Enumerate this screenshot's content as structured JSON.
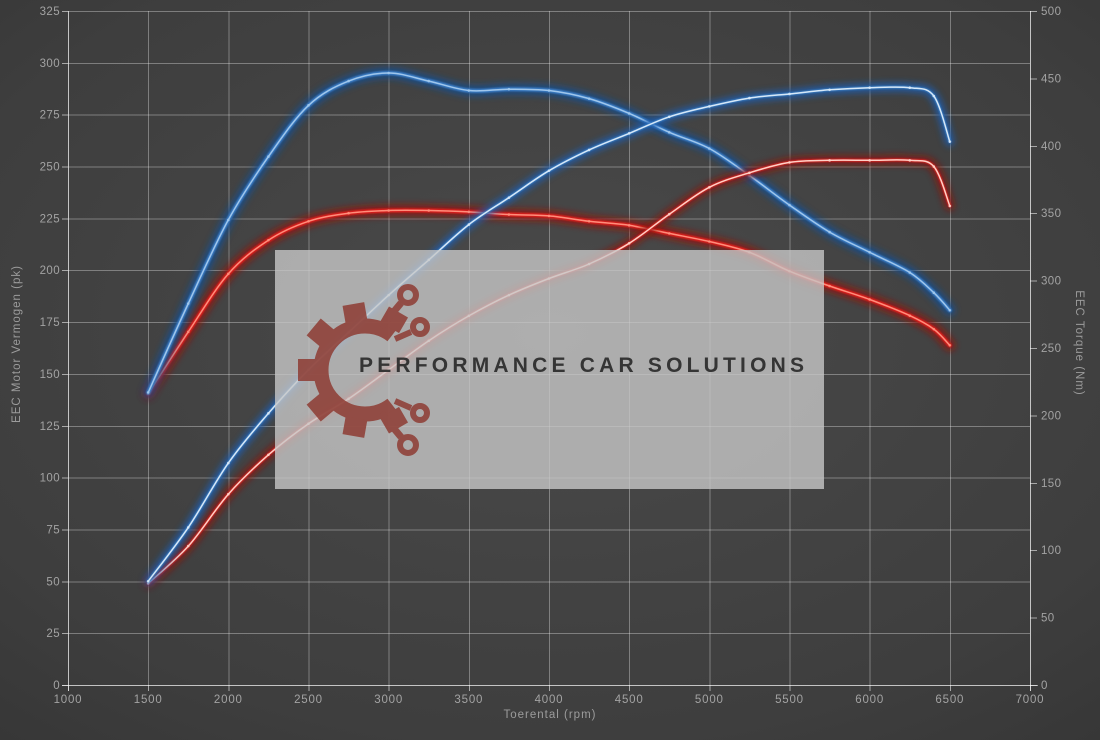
{
  "chart_data": {
    "type": "line",
    "title": "",
    "xlabel": "Toerental (rpm)",
    "ylabel_left": "EEC Motor Vermogen (pk)",
    "ylabel_right": "EEC Torque (Nm)",
    "x_range": [
      1000,
      7000
    ],
    "x_ticks": [
      1000,
      1500,
      2000,
      2500,
      3000,
      3500,
      4000,
      4500,
      5000,
      5500,
      6000,
      6500,
      7000
    ],
    "left_range": [
      0,
      325
    ],
    "left_ticks": [
      0,
      25,
      50,
      75,
      100,
      125,
      150,
      175,
      200,
      225,
      250,
      275,
      300,
      325
    ],
    "right_range": [
      0,
      500
    ],
    "right_ticks": [
      0,
      50,
      100,
      150,
      200,
      250,
      300,
      350,
      400,
      450,
      500
    ],
    "grid": {
      "on": true,
      "horizontal_step_pk": 25,
      "vertical_step_rpm": 500
    },
    "legend": "none",
    "series": [
      {
        "name": "torque-red",
        "axis": "right",
        "unit": "Nm",
        "stroke": "#e01f1f",
        "core": "#ff8d7a",
        "glow": "#941208",
        "glow_width": 11,
        "width": 4.2,
        "points": [
          [
            1500,
            216
          ],
          [
            1750,
            262
          ],
          [
            2000,
            305
          ],
          [
            2250,
            330
          ],
          [
            2500,
            344
          ],
          [
            2750,
            350
          ],
          [
            3000,
            352
          ],
          [
            3250,
            352
          ],
          [
            3500,
            351
          ],
          [
            3750,
            349
          ],
          [
            4000,
            348
          ],
          [
            4250,
            344
          ],
          [
            4500,
            341
          ],
          [
            4750,
            335
          ],
          [
            5000,
            329
          ],
          [
            5250,
            321
          ],
          [
            5500,
            307
          ],
          [
            5750,
            296
          ],
          [
            6000,
            286
          ],
          [
            6250,
            274
          ],
          [
            6400,
            264
          ],
          [
            6500,
            252
          ]
        ]
      },
      {
        "name": "torque-blue",
        "axis": "right",
        "unit": "Nm",
        "stroke": "#3b7ec6",
        "core": "#9fc6ec",
        "glow": "#164f92",
        "glow_width": 11,
        "width": 4.2,
        "points": [
          [
            1500,
            217
          ],
          [
            1750,
            283
          ],
          [
            2000,
            345
          ],
          [
            2250,
            392
          ],
          [
            2500,
            430
          ],
          [
            2750,
            448
          ],
          [
            3000,
            454
          ],
          [
            3250,
            448
          ],
          [
            3500,
            441
          ],
          [
            3750,
            442
          ],
          [
            4000,
            441
          ],
          [
            4250,
            435
          ],
          [
            4500,
            424
          ],
          [
            4750,
            410
          ],
          [
            5000,
            398
          ],
          [
            5250,
            378
          ],
          [
            5500,
            356
          ],
          [
            5750,
            336
          ],
          [
            6000,
            321
          ],
          [
            6250,
            306
          ],
          [
            6400,
            291
          ],
          [
            6500,
            278
          ]
        ]
      },
      {
        "name": "power-red",
        "axis": "left",
        "unit": "pk",
        "stroke": "#e02421",
        "core": "#ffd0c6",
        "glow": "#8c1210",
        "glow_width": 9,
        "width": 3.0,
        "points": [
          [
            1500,
            49
          ],
          [
            1750,
            67
          ],
          [
            2000,
            92
          ],
          [
            2250,
            111
          ],
          [
            2500,
            126
          ],
          [
            2750,
            138
          ],
          [
            3000,
            152
          ],
          [
            3250,
            166
          ],
          [
            3500,
            178
          ],
          [
            3750,
            188
          ],
          [
            4000,
            196
          ],
          [
            4250,
            203
          ],
          [
            4500,
            213
          ],
          [
            4750,
            227
          ],
          [
            5000,
            240
          ],
          [
            5250,
            247
          ],
          [
            5500,
            252
          ],
          [
            5750,
            253
          ],
          [
            6000,
            253
          ],
          [
            6250,
            253
          ],
          [
            6400,
            250
          ],
          [
            6500,
            231
          ]
        ]
      },
      {
        "name": "power-blue",
        "axis": "left",
        "unit": "pk",
        "stroke": "#3d7fc4",
        "core": "#d6e8f8",
        "glow": "#1b5db0",
        "glow_width": 9,
        "width": 3.0,
        "points": [
          [
            1500,
            50
          ],
          [
            1750,
            76
          ],
          [
            2000,
            107
          ],
          [
            2250,
            131
          ],
          [
            2500,
            152
          ],
          [
            2750,
            170
          ],
          [
            3000,
            188
          ],
          [
            3250,
            205
          ],
          [
            3500,
            222
          ],
          [
            3750,
            235
          ],
          [
            4000,
            248
          ],
          [
            4250,
            258
          ],
          [
            4500,
            266
          ],
          [
            4750,
            274
          ],
          [
            5000,
            279
          ],
          [
            5250,
            283
          ],
          [
            5500,
            285
          ],
          [
            5750,
            287
          ],
          [
            6000,
            288
          ],
          [
            6250,
            288
          ],
          [
            6400,
            284
          ],
          [
            6500,
            262
          ]
        ]
      }
    ]
  },
  "watermark": {
    "text": "PERFORMANCE CAR SOLUTIONS",
    "logo": "gear-circuit-logo",
    "box_color": "rgba(199,199,199,0.8)",
    "text_color": "#2a2a2a",
    "logo_color": "#8e3c33"
  },
  "colors": {
    "background_center": "#4a4a4a",
    "background_edge": "#262626",
    "grid": "rgba(255,255,255,0.33)",
    "axis": "rgba(255,255,255,0.55)",
    "tick_label": "#a3a3a3",
    "axis_title": "#9c9c9c",
    "curve_blue": "#3d7fc4",
    "curve_red": "#e01f1f"
  }
}
